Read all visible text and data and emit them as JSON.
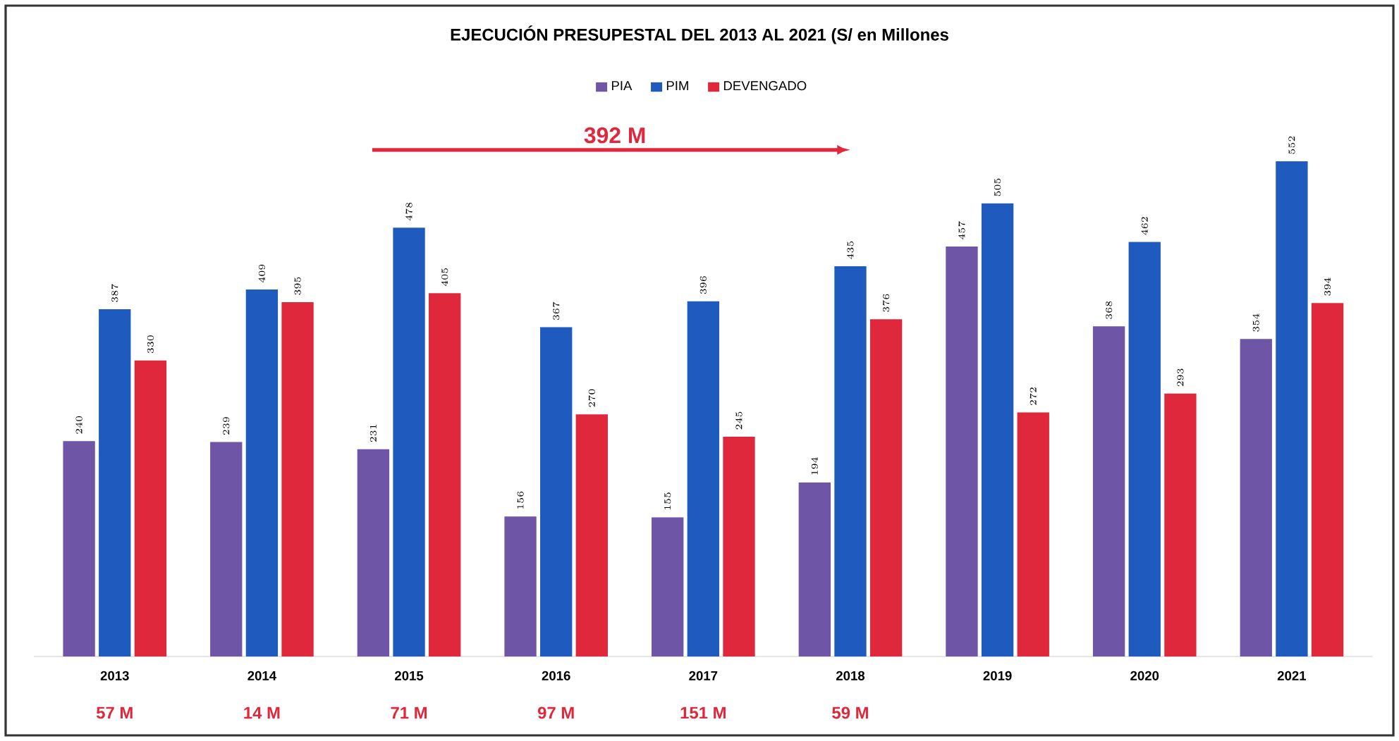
{
  "chart_data": {
    "type": "bar",
    "title": "EJECUCIÓN PRESUPESTAL DEL 2013 AL 2021 (S/ en Millones",
    "categories": [
      "2013",
      "2014",
      "2015",
      "2016",
      "2017",
      "2018",
      "2019",
      "2020",
      "2021"
    ],
    "series": [
      {
        "name": "PIA",
        "color": "#6f55a5",
        "values": [
          240,
          239,
          231,
          156,
          155,
          194,
          457,
          368,
          354
        ]
      },
      {
        "name": "PIM",
        "color": "#1f5bbf",
        "values": [
          387,
          409,
          478,
          367,
          396,
          435,
          505,
          462,
          552
        ]
      },
      {
        "name": "DEVENGADO",
        "color": "#e0283c",
        "values": [
          330,
          395,
          405,
          270,
          245,
          376,
          272,
          293,
          394
        ]
      }
    ],
    "annotations": [
      "57 M",
      "14 M",
      "71 M",
      "97 M",
      "151 M",
      "59 M",
      "392 M"
    ],
    "data_labels": true,
    "legend": "top",
    "tick_labels": "x"
  }
}
